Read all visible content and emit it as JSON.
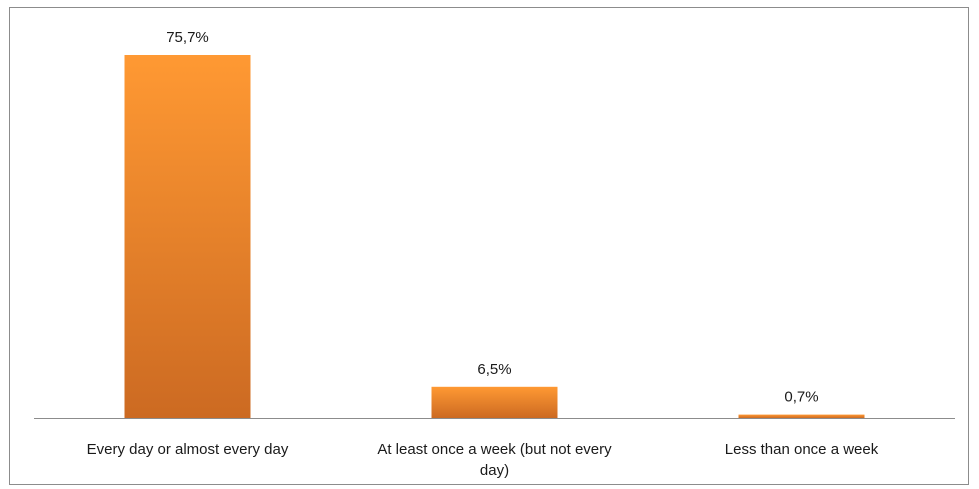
{
  "chart_data": {
    "type": "bar",
    "categories": [
      "Every day or almost every day",
      "At least once a week (but not every day)",
      "Less than once a week"
    ],
    "category_lines": [
      [
        "Every day or almost every day"
      ],
      [
        "At least once a week (but not every",
        "day)"
      ],
      [
        "Less than once a week"
      ]
    ],
    "values": [
      75.7,
      6.5,
      0.7
    ],
    "data_labels": [
      "75,7%",
      "6,5%",
      "0,7%"
    ],
    "title": "",
    "xlabel": "",
    "ylabel": "",
    "ylim": [
      0,
      80
    ],
    "grid": false,
    "legend": "none",
    "colors": {
      "bar_top": "#FF9933",
      "bar_bottom": "#CC6A22",
      "axis": "#8c8c8c",
      "frame": "#8c8c8c"
    }
  }
}
